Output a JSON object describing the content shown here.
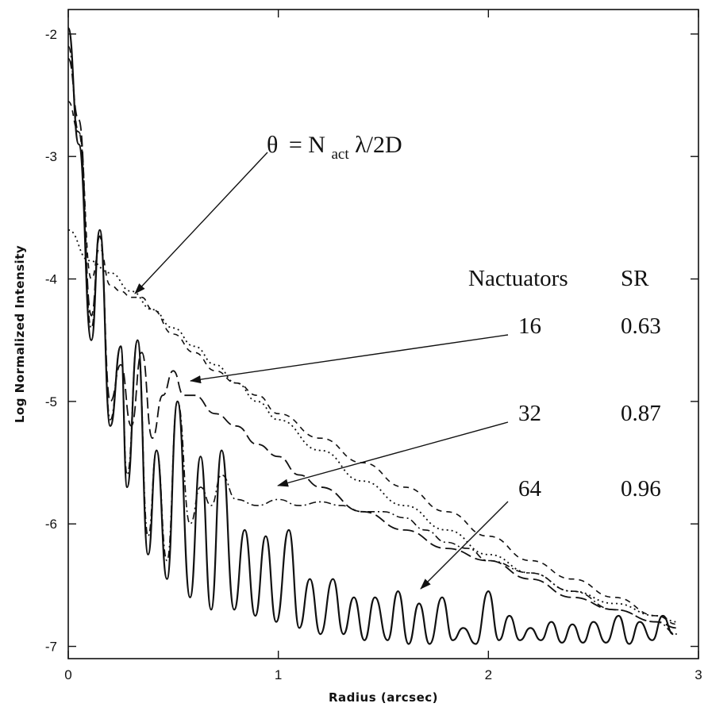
{
  "chart_data": {
    "type": "line",
    "xlabel": "Radius (arcsec)",
    "ylabel": "Log Normalized Intensity",
    "xlim": [
      0,
      3
    ],
    "ylim": [
      -7.1,
      -1.8
    ],
    "x_ticks": [
      0,
      1,
      2,
      3
    ],
    "y_ticks": [
      -7,
      -6,
      -5,
      -4,
      -3,
      -2
    ],
    "grid": false,
    "legend": "none",
    "series": [
      {
        "style": "solid",
        "x": [
          0.0,
          0.05,
          0.11,
          0.15,
          0.2,
          0.25,
          0.28,
          0.33,
          0.38,
          0.42,
          0.47,
          0.52,
          0.58,
          0.63,
          0.68,
          0.73,
          0.79,
          0.84,
          0.89,
          0.94,
          0.99,
          1.05,
          1.1,
          1.15,
          1.2,
          1.26,
          1.31,
          1.36,
          1.41,
          1.46,
          1.52,
          1.57,
          1.62,
          1.67,
          1.72,
          1.78,
          1.83,
          1.88,
          1.94,
          2.0,
          2.05,
          2.1,
          2.15,
          2.2,
          2.25,
          2.3,
          2.35,
          2.4,
          2.45,
          2.5,
          2.56,
          2.62,
          2.67,
          2.72,
          2.78,
          2.83,
          2.88
        ],
        "values": [
          -1.95,
          -2.9,
          -4.5,
          -3.6,
          -5.2,
          -4.55,
          -5.7,
          -4.5,
          -6.25,
          -5.4,
          -6.45,
          -5.0,
          -6.6,
          -5.45,
          -6.7,
          -5.4,
          -6.7,
          -6.05,
          -6.75,
          -6.1,
          -6.8,
          -6.05,
          -6.85,
          -6.45,
          -6.9,
          -6.45,
          -6.9,
          -6.6,
          -6.95,
          -6.6,
          -6.95,
          -6.55,
          -6.98,
          -6.65,
          -6.98,
          -6.6,
          -6.95,
          -6.85,
          -6.98,
          -6.55,
          -6.95,
          -6.75,
          -6.95,
          -6.85,
          -6.95,
          -6.8,
          -6.97,
          -6.82,
          -6.97,
          -6.8,
          -6.97,
          -6.75,
          -6.98,
          -6.8,
          -6.95,
          -6.75,
          -6.9
        ]
      },
      {
        "style": "dash-dot",
        "x": [
          0.0,
          0.05,
          0.11,
          0.15,
          0.2,
          0.25,
          0.28,
          0.33,
          0.38,
          0.42,
          0.47,
          0.52,
          0.58,
          0.63,
          0.68,
          0.73,
          0.8,
          0.9,
          1.0,
          1.1,
          1.2,
          1.3,
          1.4,
          1.5,
          1.6,
          1.7,
          1.8,
          1.9,
          2.0,
          2.2,
          2.4,
          2.6,
          2.8,
          2.9
        ],
        "values": [
          -2.1,
          -2.8,
          -4.4,
          -3.6,
          -5.15,
          -4.55,
          -5.6,
          -4.5,
          -6.1,
          -5.4,
          -6.3,
          -5.0,
          -6.0,
          -5.7,
          -5.85,
          -5.6,
          -5.8,
          -5.85,
          -5.8,
          -5.85,
          -5.82,
          -5.85,
          -5.9,
          -5.9,
          -5.95,
          -6.05,
          -6.15,
          -6.2,
          -6.3,
          -6.4,
          -6.55,
          -6.7,
          -6.8,
          -6.9
        ]
      },
      {
        "style": "long-dash",
        "x": [
          0.0,
          0.05,
          0.11,
          0.15,
          0.2,
          0.25,
          0.3,
          0.35,
          0.4,
          0.45,
          0.5,
          0.55,
          0.6,
          0.7,
          0.8,
          0.9,
          1.0,
          1.1,
          1.2,
          1.4,
          1.6,
          1.8,
          2.0,
          2.2,
          2.4,
          2.6,
          2.8,
          2.9
        ],
        "values": [
          -2.2,
          -2.7,
          -4.3,
          -3.65,
          -5.0,
          -4.7,
          -5.2,
          -4.6,
          -5.3,
          -4.95,
          -4.75,
          -4.95,
          -4.95,
          -5.1,
          -5.2,
          -5.35,
          -5.45,
          -5.6,
          -5.7,
          -5.9,
          -6.05,
          -6.2,
          -6.3,
          -6.45,
          -6.6,
          -6.7,
          -6.8,
          -6.85
        ]
      },
      {
        "style": "short-dash",
        "x": [
          0.0,
          0.05,
          0.11,
          0.15,
          0.2,
          0.25,
          0.3,
          0.35,
          0.4,
          0.5,
          0.6,
          0.7,
          0.8,
          0.9,
          1.0,
          1.2,
          1.4,
          1.6,
          1.8,
          2.0,
          2.2,
          2.4,
          2.6,
          2.8,
          2.9
        ],
        "values": [
          -2.55,
          -2.8,
          -4.0,
          -3.75,
          -4.05,
          -4.1,
          -4.15,
          -4.15,
          -4.25,
          -4.45,
          -4.6,
          -4.75,
          -4.85,
          -4.95,
          -5.1,
          -5.3,
          -5.5,
          -5.7,
          -5.9,
          -6.1,
          -6.3,
          -6.45,
          -6.6,
          -6.75,
          -6.82
        ]
      },
      {
        "style": "dotted",
        "x": [
          0.0,
          0.1,
          0.2,
          0.3,
          0.4,
          0.5,
          0.6,
          0.7,
          0.8,
          0.9,
          1.0,
          1.2,
          1.4,
          1.6,
          1.8,
          2.0,
          2.2,
          2.4,
          2.6,
          2.8,
          2.9
        ],
        "values": [
          -3.6,
          -3.85,
          -3.95,
          -4.1,
          -4.25,
          -4.4,
          -4.55,
          -4.7,
          -4.85,
          -5.0,
          -5.15,
          -5.4,
          -5.65,
          -5.85,
          -6.05,
          -6.25,
          -6.4,
          -6.55,
          -6.65,
          -6.75,
          -6.8
        ]
      }
    ],
    "annotations": {
      "formula": {
        "theta": "θ",
        "equals": "= N",
        "sub": "act",
        "rest": " λ/2D"
      },
      "col_header_n": "Nactuators",
      "col_header_sr": "SR",
      "rows": [
        {
          "n": "16",
          "sr": "0.63"
        },
        {
          "n": "32",
          "sr": "0.87"
        },
        {
          "n": "64",
          "sr": "0.96"
        }
      ]
    }
  }
}
